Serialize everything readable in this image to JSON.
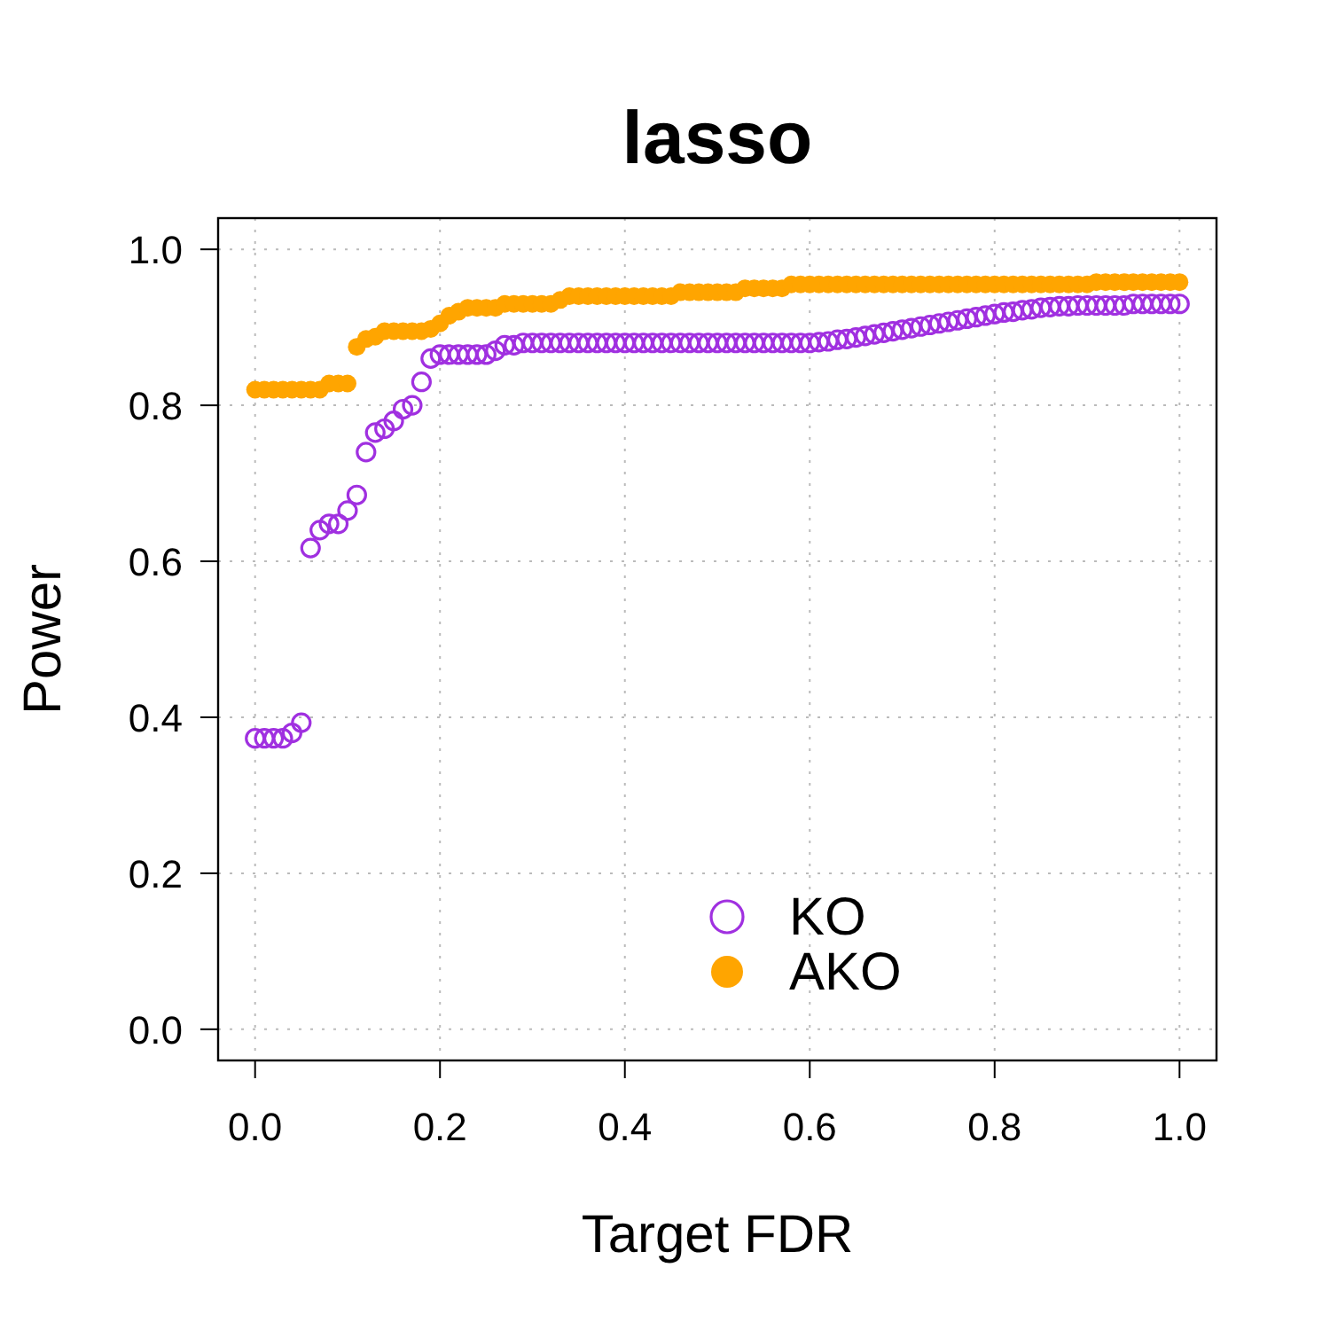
{
  "chart_data": {
    "type": "scatter",
    "title": "lasso",
    "xlabel": "Target FDR",
    "ylabel": "Power",
    "x": [
      0,
      0.01,
      0.02,
      0.03,
      0.04,
      0.05,
      0.06,
      0.07,
      0.08,
      0.09,
      0.1,
      0.11,
      0.12,
      0.13,
      0.14,
      0.15,
      0.16,
      0.17,
      0.18,
      0.19,
      0.2,
      0.21,
      0.22,
      0.23,
      0.24,
      0.25,
      0.26,
      0.27,
      0.28,
      0.29,
      0.3,
      0.31,
      0.32,
      0.33,
      0.34,
      0.35,
      0.36,
      0.37,
      0.38,
      0.39,
      0.4,
      0.41,
      0.42,
      0.43,
      0.44,
      0.45,
      0.46,
      0.47,
      0.48,
      0.49,
      0.5,
      0.51,
      0.52,
      0.53,
      0.54,
      0.55,
      0.56,
      0.57,
      0.58,
      0.59,
      0.6,
      0.61,
      0.62,
      0.63,
      0.64,
      0.65,
      0.66,
      0.67,
      0.68,
      0.69,
      0.7,
      0.71,
      0.72,
      0.73,
      0.74,
      0.75,
      0.76,
      0.77,
      0.78,
      0.79,
      0.8,
      0.81,
      0.82,
      0.83,
      0.84,
      0.85,
      0.86,
      0.87,
      0.88,
      0.89,
      0.9,
      0.91,
      0.92,
      0.93,
      0.94,
      0.95,
      0.96,
      0.97,
      0.98,
      0.99,
      1
    ],
    "series": [
      {
        "name": "KO",
        "color": "#a030e0",
        "values": [
          0.373,
          0.373,
          0.373,
          0.373,
          0.38,
          0.393,
          0.617,
          0.64,
          0.648,
          0.648,
          0.665,
          0.685,
          0.74,
          0.765,
          0.77,
          0.78,
          0.795,
          0.8,
          0.83,
          0.86,
          0.865,
          0.865,
          0.865,
          0.865,
          0.865,
          0.865,
          0.87,
          0.877,
          0.877,
          0.88,
          0.88,
          0.88,
          0.88,
          0.88,
          0.88,
          0.88,
          0.88,
          0.88,
          0.88,
          0.88,
          0.88,
          0.88,
          0.88,
          0.88,
          0.88,
          0.88,
          0.88,
          0.88,
          0.88,
          0.88,
          0.88,
          0.88,
          0.88,
          0.88,
          0.88,
          0.88,
          0.88,
          0.88,
          0.88,
          0.88,
          0.88,
          0.881,
          0.882,
          0.884,
          0.885,
          0.887,
          0.889,
          0.891,
          0.893,
          0.895,
          0.897,
          0.899,
          0.901,
          0.903,
          0.905,
          0.907,
          0.909,
          0.911,
          0.913,
          0.915,
          0.917,
          0.919,
          0.92,
          0.922,
          0.923,
          0.925,
          0.926,
          0.927,
          0.927,
          0.928,
          0.928,
          0.928,
          0.928,
          0.928,
          0.928,
          0.93,
          0.93,
          0.93,
          0.93,
          0.93,
          0.93
        ]
      },
      {
        "name": "AKO",
        "color": "#ffa500",
        "values": [
          0.82,
          0.82,
          0.82,
          0.82,
          0.82,
          0.82,
          0.82,
          0.82,
          0.828,
          0.828,
          0.828,
          0.875,
          0.885,
          0.888,
          0.895,
          0.895,
          0.895,
          0.895,
          0.895,
          0.898,
          0.905,
          0.915,
          0.92,
          0.925,
          0.925,
          0.925,
          0.925,
          0.93,
          0.93,
          0.93,
          0.93,
          0.93,
          0.93,
          0.935,
          0.94,
          0.94,
          0.94,
          0.94,
          0.94,
          0.94,
          0.94,
          0.94,
          0.94,
          0.94,
          0.94,
          0.94,
          0.945,
          0.945,
          0.945,
          0.945,
          0.945,
          0.945,
          0.945,
          0.95,
          0.95,
          0.95,
          0.95,
          0.95,
          0.955,
          0.955,
          0.955,
          0.955,
          0.955,
          0.955,
          0.955,
          0.955,
          0.955,
          0.955,
          0.955,
          0.955,
          0.955,
          0.955,
          0.955,
          0.955,
          0.955,
          0.955,
          0.955,
          0.955,
          0.955,
          0.955,
          0.955,
          0.955,
          0.955,
          0.955,
          0.955,
          0.955,
          0.955,
          0.955,
          0.955,
          0.955,
          0.955,
          0.958,
          0.958,
          0.958,
          0.958,
          0.958,
          0.958,
          0.958,
          0.958,
          0.958,
          0.958
        ]
      }
    ],
    "xlim": [
      -0.04,
      1.04
    ],
    "ylim": [
      -0.04,
      1.04
    ],
    "xticks": [
      {
        "value": 0,
        "label": "0.0"
      },
      {
        "value": 0.2,
        "label": "0.2"
      },
      {
        "value": 0.4,
        "label": "0.4"
      },
      {
        "value": 0.6,
        "label": "0.6"
      },
      {
        "value": 0.8,
        "label": "0.8"
      },
      {
        "value": 1,
        "label": "1.0"
      }
    ],
    "yticks": [
      {
        "value": 0,
        "label": "0.0"
      },
      {
        "value": 0.2,
        "label": "0.2"
      },
      {
        "value": 0.4,
        "label": "0.4"
      },
      {
        "value": 0.6,
        "label": "0.6"
      },
      {
        "value": 0.8,
        "label": "0.8"
      },
      {
        "value": 1,
        "label": "1.0"
      }
    ],
    "grid": true,
    "legend": "bottom right",
    "marker": "circle"
  }
}
